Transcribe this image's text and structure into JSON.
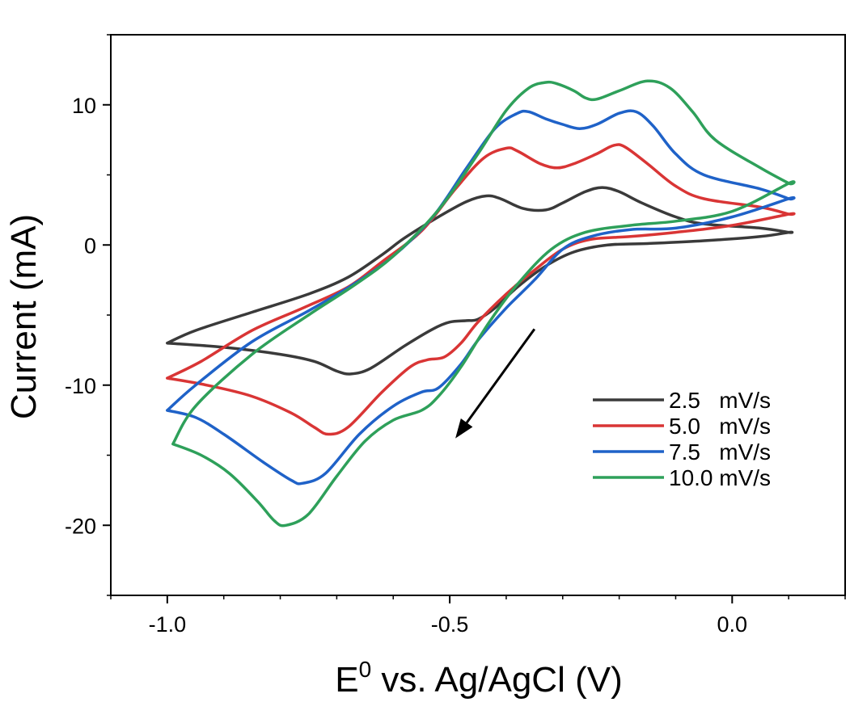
{
  "chart_data": {
    "type": "line",
    "title": "",
    "xlabel_base": "E",
    "xlabel_sup": "0",
    "xlabel_rest": " vs. Ag/AgCl (V)",
    "ylabel": "Current (mA)",
    "xlim": [
      -1.1,
      0.2
    ],
    "ylim": [
      -25,
      15
    ],
    "x_ticks": [
      {
        "value": -1.0,
        "label": "-1.0"
      },
      {
        "value": -0.5,
        "label": "-0.5"
      },
      {
        "value": 0.0,
        "label": "0.0"
      }
    ],
    "y_ticks": [
      {
        "value": 10,
        "label": "10"
      },
      {
        "value": 0,
        "label": "0"
      },
      {
        "value": -10,
        "label": "-10"
      },
      {
        "value": -20,
        "label": "-20"
      }
    ],
    "grid": false,
    "legend_position": "bottom-right",
    "annotation": "scan-direction arrow pointing down-left",
    "arrow": {
      "from": [
        -0.35,
        -6.0
      ],
      "to": [
        -0.49,
        -13.8
      ]
    },
    "series": [
      {
        "name": "2.5 mV/s",
        "legend_label": "2.5   mV/s",
        "color": "#3a3a3a",
        "x": [
          -1.0,
          -0.9,
          -0.8,
          -0.74,
          -0.7,
          -0.675,
          -0.64,
          -0.58,
          -0.53,
          -0.5,
          -0.47,
          -0.45,
          -0.42,
          -0.38,
          -0.33,
          -0.28,
          -0.22,
          -0.15,
          -0.05,
          0.05,
          0.1,
          0.1,
          0.05,
          -0.05,
          -0.1,
          -0.16,
          -0.2,
          -0.23,
          -0.26,
          -0.3,
          -0.33,
          -0.37,
          -0.41,
          -0.435,
          -0.47,
          -0.52,
          -0.58,
          -0.62,
          -0.68,
          -0.75,
          -0.85,
          -0.95,
          -1.0
        ],
        "y": [
          -7.0,
          -7.3,
          -7.8,
          -8.3,
          -9.0,
          -9.2,
          -8.8,
          -7.2,
          -6.0,
          -5.5,
          -5.4,
          -5.3,
          -4.5,
          -3.0,
          -1.5,
          -0.5,
          0.0,
          0.1,
          0.3,
          0.6,
          0.9,
          0.9,
          1.2,
          1.5,
          2.0,
          3.0,
          3.8,
          4.1,
          3.8,
          3.0,
          2.5,
          2.6,
          3.3,
          3.5,
          3.1,
          2.0,
          0.5,
          -0.7,
          -2.3,
          -3.5,
          -4.8,
          -6.1,
          -7.0
        ]
      },
      {
        "name": "5.0 mV/s",
        "legend_label": "5.0   mV/s",
        "color": "#d93535",
        "x": [
          -1.0,
          -0.93,
          -0.85,
          -0.78,
          -0.74,
          -0.715,
          -0.68,
          -0.62,
          -0.57,
          -0.54,
          -0.51,
          -0.48,
          -0.45,
          -0.4,
          -0.35,
          -0.3,
          -0.25,
          -0.18,
          -0.1,
          0.0,
          0.1,
          0.1,
          0.05,
          -0.05,
          -0.1,
          -0.15,
          -0.19,
          -0.21,
          -0.24,
          -0.28,
          -0.31,
          -0.34,
          -0.38,
          -0.4,
          -0.44,
          -0.49,
          -0.55,
          -0.62,
          -0.68,
          -0.76,
          -0.85,
          -0.94,
          -1.0
        ],
        "y": [
          -9.5,
          -10.0,
          -10.8,
          -12.0,
          -13.0,
          -13.5,
          -13.0,
          -10.5,
          -8.7,
          -8.2,
          -8.0,
          -7.0,
          -5.5,
          -3.5,
          -1.8,
          -0.3,
          0.4,
          0.6,
          0.9,
          1.4,
          2.2,
          2.2,
          2.7,
          3.3,
          4.2,
          5.8,
          7.0,
          7.1,
          6.5,
          5.8,
          5.5,
          5.8,
          6.7,
          6.9,
          6.2,
          4.0,
          1.0,
          -1.2,
          -3.0,
          -4.5,
          -6.1,
          -8.3,
          -9.5
        ]
      },
      {
        "name": "7.5 mV/s",
        "legend_label": "7.5   mV/s",
        "color": "#1f62c8",
        "x": [
          -1.0,
          -0.95,
          -0.9,
          -0.83,
          -0.78,
          -0.76,
          -0.72,
          -0.66,
          -0.6,
          -0.55,
          -0.52,
          -0.48,
          -0.45,
          -0.4,
          -0.35,
          -0.3,
          -0.25,
          -0.18,
          -0.1,
          0.0,
          0.1,
          0.1,
          0.05,
          -0.05,
          -0.1,
          -0.14,
          -0.17,
          -0.2,
          -0.24,
          -0.27,
          -0.3,
          -0.33,
          -0.36,
          -0.38,
          -0.42,
          -0.47,
          -0.53,
          -0.6,
          -0.67,
          -0.75,
          -0.85,
          -0.95,
          -1.0
        ],
        "y": [
          -11.8,
          -12.3,
          -13.5,
          -15.5,
          -16.8,
          -17.0,
          -16.3,
          -13.5,
          -11.5,
          -10.5,
          -10.2,
          -8.5,
          -6.8,
          -4.5,
          -2.5,
          -0.3,
          0.6,
          1.1,
          1.2,
          2.0,
          3.3,
          3.3,
          4.0,
          5.0,
          6.5,
          8.5,
          9.5,
          9.4,
          8.6,
          8.3,
          8.6,
          9.0,
          9.5,
          9.4,
          8.3,
          5.5,
          2.0,
          -0.8,
          -2.8,
          -4.7,
          -6.9,
          -10.0,
          -11.8
        ]
      },
      {
        "name": "10.0 mV/s",
        "legend_label": "10.0 mV/s",
        "color": "#2ea05a",
        "x": [
          -0.99,
          -0.94,
          -0.89,
          -0.84,
          -0.81,
          -0.79,
          -0.75,
          -0.7,
          -0.65,
          -0.6,
          -0.55,
          -0.52,
          -0.48,
          -0.43,
          -0.38,
          -0.32,
          -0.26,
          -0.18,
          -0.1,
          0.0,
          0.1,
          0.1,
          0.05,
          -0.03,
          -0.07,
          -0.11,
          -0.15,
          -0.2,
          -0.24,
          -0.26,
          -0.28,
          -0.31,
          -0.33,
          -0.36,
          -0.4,
          -0.45,
          -0.52,
          -0.6,
          -0.67,
          -0.75,
          -0.85,
          -0.95,
          -0.99
        ],
        "y": [
          -14.2,
          -15.0,
          -16.3,
          -18.3,
          -19.7,
          -20.0,
          -19.2,
          -16.5,
          -14.0,
          -12.5,
          -11.8,
          -10.8,
          -8.7,
          -5.5,
          -2.8,
          -0.3,
          0.9,
          1.4,
          1.7,
          2.4,
          4.4,
          4.4,
          5.5,
          7.5,
          9.5,
          11.2,
          11.7,
          11.0,
          10.4,
          10.5,
          11.0,
          11.5,
          11.6,
          11.2,
          9.6,
          6.5,
          2.5,
          -0.8,
          -2.9,
          -5.0,
          -7.8,
          -11.5,
          -14.2
        ]
      }
    ]
  }
}
